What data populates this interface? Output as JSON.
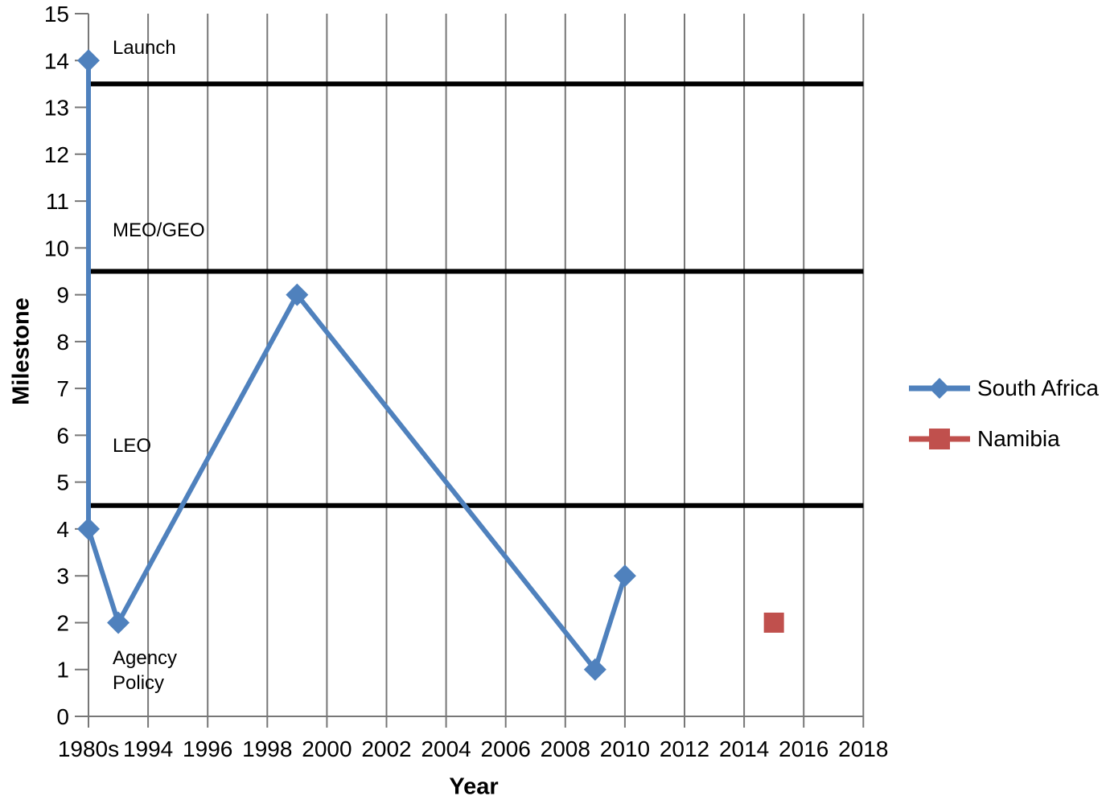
{
  "chart_data": {
    "type": "line",
    "title": "",
    "xlabel": "Year",
    "ylabel": "Milestone",
    "x_categories": [
      "1980s",
      "1994",
      "1996",
      "1998",
      "2000",
      "2002",
      "2004",
      "2006",
      "2008",
      "2010",
      "2012",
      "2014",
      "2016",
      "2018"
    ],
    "y_ticks": [
      "0",
      "1",
      "2",
      "3",
      "4",
      "5",
      "6",
      "7",
      "8",
      "9",
      "10",
      "11",
      "12",
      "13",
      "14",
      "15"
    ],
    "ylim": [
      0,
      15
    ],
    "grid": "vertical-only",
    "legend_position": "right-outside",
    "series": [
      {
        "name": "South Africa",
        "color": "#4F81BD",
        "marker": "diamond",
        "line": true,
        "points": [
          {
            "x": "1980s",
            "y": 14
          },
          {
            "x": "1980s",
            "y": 4
          },
          {
            "x": "1993",
            "y": 2
          },
          {
            "x": "1999",
            "y": 9
          },
          {
            "x": "2009",
            "y": 1
          },
          {
            "x": "2010",
            "y": 3
          }
        ]
      },
      {
        "name": "Namibia",
        "color": "#C0504D",
        "marker": "square",
        "line": false,
        "points": [
          {
            "x": "2015",
            "y": 2
          }
        ]
      }
    ],
    "band_lines": [
      {
        "y": 13.5
      },
      {
        "y": 9.5
      },
      {
        "y": 4.5
      }
    ],
    "annotations": [
      {
        "text": "Launch",
        "y": 14.3
      },
      {
        "text": "MEO/GEO",
        "y": 10.4
      },
      {
        "text": "LEO",
        "y": 5.8
      },
      {
        "text": "Agency\nPolicy",
        "y": 1.0
      }
    ],
    "colors": {
      "grid": "#777777",
      "axis": "#777777",
      "band_line": "#000000",
      "text": "#000000"
    }
  },
  "legend": {
    "items": [
      {
        "label": "South Africa"
      },
      {
        "label": "Namibia"
      }
    ]
  }
}
